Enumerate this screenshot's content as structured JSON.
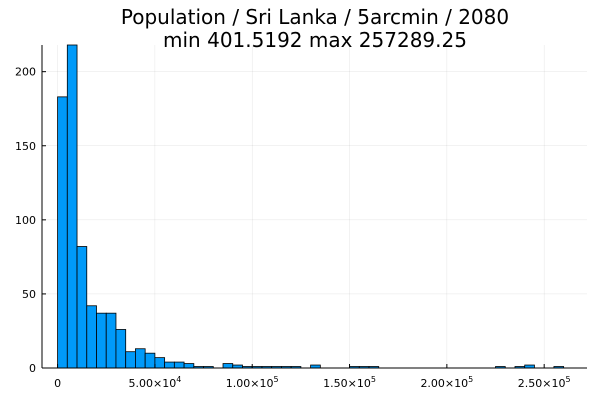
{
  "chart_data": {
    "type": "bar",
    "title": "Population / Sri Lanka / 5arcmin / 2080",
    "subtitle": "min 401.5192  max 257289.25",
    "xlabel": "",
    "ylabel": "",
    "bin_width": 5000,
    "xlim": [
      -8000,
      272000
    ],
    "ylim": [
      0,
      218
    ],
    "x_ticks": [
      {
        "value": 0,
        "mantissa": "0",
        "exponent": ""
      },
      {
        "value": 50000,
        "mantissa": "5.00×10",
        "exponent": "4"
      },
      {
        "value": 100000,
        "mantissa": "1.00×10",
        "exponent": "5"
      },
      {
        "value": 150000,
        "mantissa": "1.50×10",
        "exponent": "5"
      },
      {
        "value": 200000,
        "mantissa": "2.00×10",
        "exponent": "5"
      },
      {
        "value": 250000,
        "mantissa": "2.50×10",
        "exponent": "5"
      }
    ],
    "y_ticks": [
      0,
      50,
      100,
      150,
      200
    ],
    "grid": true,
    "legend": "none",
    "bar_color": "#009af9",
    "bins": [
      {
        "start": 0,
        "count": 183
      },
      {
        "start": 5000,
        "count": 218
      },
      {
        "start": 10000,
        "count": 82
      },
      {
        "start": 15000,
        "count": 42
      },
      {
        "start": 20000,
        "count": 37
      },
      {
        "start": 25000,
        "count": 37
      },
      {
        "start": 30000,
        "count": 26
      },
      {
        "start": 35000,
        "count": 11
      },
      {
        "start": 40000,
        "count": 13
      },
      {
        "start": 45000,
        "count": 10
      },
      {
        "start": 50000,
        "count": 7
      },
      {
        "start": 55000,
        "count": 4
      },
      {
        "start": 60000,
        "count": 4
      },
      {
        "start": 65000,
        "count": 3
      },
      {
        "start": 70000,
        "count": 1
      },
      {
        "start": 75000,
        "count": 1
      },
      {
        "start": 85000,
        "count": 3
      },
      {
        "start": 90000,
        "count": 2
      },
      {
        "start": 95000,
        "count": 1
      },
      {
        "start": 100000,
        "count": 1
      },
      {
        "start": 105000,
        "count": 1
      },
      {
        "start": 110000,
        "count": 1
      },
      {
        "start": 115000,
        "count": 1
      },
      {
        "start": 120000,
        "count": 1
      },
      {
        "start": 130000,
        "count": 2
      },
      {
        "start": 150000,
        "count": 1
      },
      {
        "start": 155000,
        "count": 1
      },
      {
        "start": 160000,
        "count": 1
      },
      {
        "start": 225000,
        "count": 1
      },
      {
        "start": 235000,
        "count": 1
      },
      {
        "start": 240000,
        "count": 2
      },
      {
        "start": 255000,
        "count": 1
      }
    ]
  }
}
